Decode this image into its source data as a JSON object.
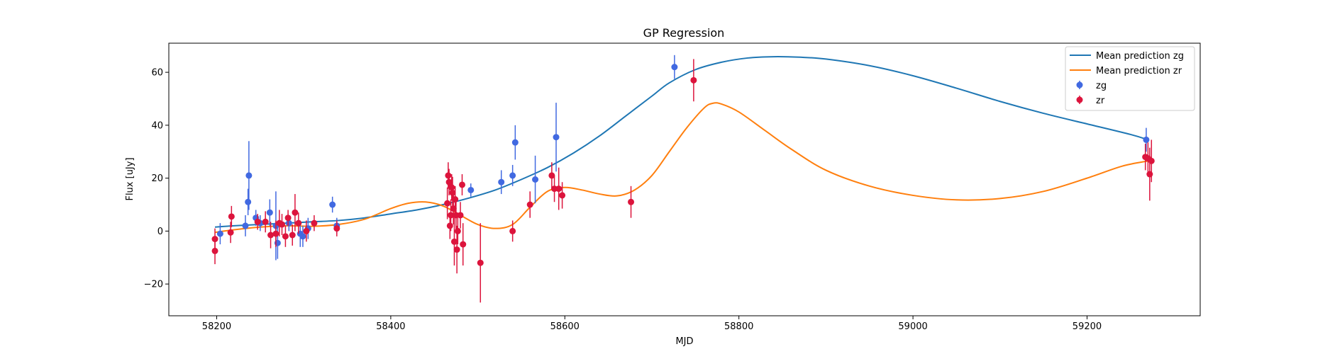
{
  "chart_data": {
    "type": "scatter",
    "title": "GP Regression",
    "xlabel": "MJD",
    "ylabel": "Flux [uJy]",
    "xlim": [
      58145,
      59330
    ],
    "ylim": [
      -32,
      71
    ],
    "xticks": [
      58200,
      58400,
      58600,
      58800,
      59000,
      59200
    ],
    "yticks": [
      -20,
      0,
      20,
      40,
      60
    ],
    "grid": false,
    "legend_position": "top-right",
    "colors": {
      "line_zg": "#1f77b4",
      "line_zr": "#ff7f0e",
      "points_zg": "#4169e1",
      "points_zr": "#dc143c"
    },
    "lines": [
      {
        "name": "Mean prediction zg",
        "x": [
          58198,
          58220,
          58250,
          58280,
          58310,
          58340,
          58370,
          58400,
          58430,
          58460,
          58490,
          58520,
          58550,
          58580,
          58610,
          58640,
          58670,
          58700,
          58720,
          58750,
          58780,
          58810,
          58840,
          58870,
          58900,
          58950,
          59000,
          59050,
          59100,
          59150,
          59200,
          59250,
          59270
        ],
        "y": [
          1.5,
          2.0,
          2.5,
          3.0,
          3.5,
          4.0,
          5.0,
          6.5,
          8.0,
          10.0,
          12.5,
          15.5,
          19.5,
          24.0,
          29.5,
          36.0,
          43.5,
          51.0,
          56.0,
          61.0,
          63.8,
          65.4,
          65.9,
          65.7,
          65.0,
          62.5,
          58.7,
          54.0,
          49.0,
          44.5,
          40.5,
          36.5,
          34.5
        ]
      },
      {
        "name": "Mean prediction zr",
        "x": [
          58198,
          58220,
          58250,
          58280,
          58310,
          58340,
          58370,
          58400,
          58420,
          58440,
          58460,
          58480,
          58500,
          58520,
          58540,
          58560,
          58580,
          58600,
          58620,
          58640,
          58660,
          58680,
          58700,
          58720,
          58740,
          58760,
          58770,
          58780,
          58800,
          58830,
          58860,
          58900,
          58950,
          59000,
          59050,
          59100,
          59150,
          59200,
          59240,
          59270
        ],
        "y": [
          -0.5,
          0.5,
          1.5,
          2.0,
          1.8,
          2.5,
          4.5,
          8.5,
          10.5,
          11.0,
          9.5,
          6.0,
          2.5,
          1.0,
          2.5,
          9.0,
          15.0,
          16.5,
          15.5,
          14.0,
          13.3,
          15.5,
          21.0,
          30.0,
          39.0,
          46.5,
          48.3,
          48.0,
          45.0,
          38.0,
          31.0,
          23.0,
          17.0,
          13.5,
          11.8,
          12.3,
          15.0,
          20.0,
          24.5,
          26.5
        ]
      }
    ],
    "series": [
      {
        "name": "zg",
        "points": [
          {
            "x": 58204,
            "y": -1,
            "err": 4
          },
          {
            "x": 58233,
            "y": 2,
            "err": 4
          },
          {
            "x": 58236,
            "y": 11,
            "err": 5
          },
          {
            "x": 58237,
            "y": 21,
            "err": 13
          },
          {
            "x": 58245,
            "y": 5,
            "err": 3
          },
          {
            "x": 58250,
            "y": 3,
            "err": 3
          },
          {
            "x": 58261,
            "y": 7,
            "err": 5
          },
          {
            "x": 58268,
            "y": 2,
            "err": 13
          },
          {
            "x": 58270,
            "y": -4.5,
            "err": 6
          },
          {
            "x": 58283,
            "y": 3,
            "err": 3
          },
          {
            "x": 58296,
            "y": -1,
            "err": 5
          },
          {
            "x": 58299,
            "y": -2,
            "err": 4
          },
          {
            "x": 58305,
            "y": 1,
            "err": 4
          },
          {
            "x": 58333,
            "y": 10,
            "err": 3
          },
          {
            "x": 58338,
            "y": 2,
            "err": 3
          },
          {
            "x": 58492,
            "y": 15.5,
            "err": 2.5
          },
          {
            "x": 58527,
            "y": 18.5,
            "err": 4.5
          },
          {
            "x": 58540,
            "y": 21,
            "err": 4
          },
          {
            "x": 58543,
            "y": 33.5,
            "err": 6.5
          },
          {
            "x": 58566,
            "y": 19.5,
            "err": 9
          },
          {
            "x": 58590,
            "y": 35.5,
            "err": 13
          },
          {
            "x": 58726,
            "y": 62,
            "err": 4.5
          },
          {
            "x": 59268,
            "y": 34.5,
            "err": 4.5
          }
        ]
      },
      {
        "name": "zr",
        "points": [
          {
            "x": 58198,
            "y": -3,
            "err": 4
          },
          {
            "x": 58198,
            "y": -7.5,
            "err": 5
          },
          {
            "x": 58216,
            "y": -0.5,
            "err": 4
          },
          {
            "x": 58217,
            "y": 5.5,
            "err": 4
          },
          {
            "x": 58247,
            "y": 3.5,
            "err": 3
          },
          {
            "x": 58256,
            "y": 3.5,
            "err": 4
          },
          {
            "x": 58262,
            "y": -1.5,
            "err": 5
          },
          {
            "x": 58268,
            "y": -1,
            "err": 5
          },
          {
            "x": 58272,
            "y": 3,
            "err": 5
          },
          {
            "x": 58275,
            "y": 2.5,
            "err": 4
          },
          {
            "x": 58279,
            "y": -2,
            "err": 4
          },
          {
            "x": 58282,
            "y": 5,
            "err": 3
          },
          {
            "x": 58287,
            "y": -1.5,
            "err": 4
          },
          {
            "x": 58290,
            "y": 7,
            "err": 7
          },
          {
            "x": 58294,
            "y": 3,
            "err": 4
          },
          {
            "x": 58303,
            "y": 0,
            "err": 4
          },
          {
            "x": 58312,
            "y": 3,
            "err": 3
          },
          {
            "x": 58338,
            "y": 1,
            "err": 3
          },
          {
            "x": 58465,
            "y": 10.5,
            "err": 6
          },
          {
            "x": 58466,
            "y": 21,
            "err": 5
          },
          {
            "x": 58467,
            "y": 18.5,
            "err": 5
          },
          {
            "x": 58468,
            "y": 2,
            "err": 5
          },
          {
            "x": 58469,
            "y": 6,
            "err": 6
          },
          {
            "x": 58470,
            "y": 16.5,
            "err": 5
          },
          {
            "x": 58471,
            "y": 14.5,
            "err": 6
          },
          {
            "x": 58472,
            "y": 8.5,
            "err": 6
          },
          {
            "x": 58473,
            "y": -4,
            "err": 9
          },
          {
            "x": 58474,
            "y": 12,
            "err": 5
          },
          {
            "x": 58475,
            "y": 6,
            "err": 6
          },
          {
            "x": 58476,
            "y": -7,
            "err": 9
          },
          {
            "x": 58477,
            "y": 0,
            "err": 5
          },
          {
            "x": 58480,
            "y": 6,
            "err": 5
          },
          {
            "x": 58482,
            "y": 17.5,
            "err": 4
          },
          {
            "x": 58483,
            "y": -5,
            "err": 8
          },
          {
            "x": 58503,
            "y": -12,
            "err": 15
          },
          {
            "x": 58540,
            "y": 0,
            "err": 4
          },
          {
            "x": 58560,
            "y": 10,
            "err": 5
          },
          {
            "x": 58585,
            "y": 21,
            "err": 5
          },
          {
            "x": 58588,
            "y": 16,
            "err": 5
          },
          {
            "x": 58593,
            "y": 16,
            "err": 8
          },
          {
            "x": 58597,
            "y": 13.5,
            "err": 5
          },
          {
            "x": 58676,
            "y": 11,
            "err": 6
          },
          {
            "x": 58748,
            "y": 57,
            "err": 8
          },
          {
            "x": 59267,
            "y": 28,
            "err": 5
          },
          {
            "x": 59270,
            "y": 27.5,
            "err": 6
          },
          {
            "x": 59272,
            "y": 21.5,
            "err": 10
          },
          {
            "x": 59274,
            "y": 26.5,
            "err": 8
          }
        ]
      }
    ]
  }
}
